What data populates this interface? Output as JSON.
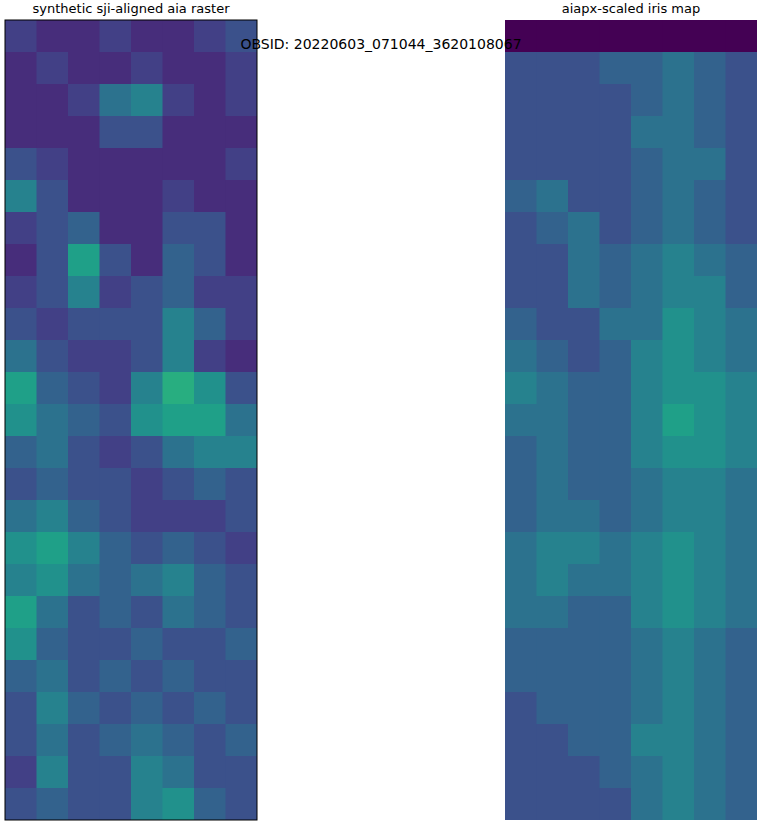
{
  "title": "OBSID: 20220603_071044_3620108067",
  "chart_data": [
    {
      "type": "heatmap",
      "title": "synthetic sji-aligned aia raster",
      "tick_labels": false,
      "zlim": [
        0.1,
        0.9
      ],
      "cells": [
        [
          0.25,
          0.2,
          0.2,
          0.25,
          0.2,
          0.2,
          0.25,
          0.3
        ],
        [
          0.2,
          0.25,
          0.2,
          0.2,
          0.25,
          0.2,
          0.2,
          0.25
        ],
        [
          0.2,
          0.2,
          0.25,
          0.4,
          0.45,
          0.25,
          0.2,
          0.25
        ],
        [
          0.2,
          0.2,
          0.2,
          0.3,
          0.3,
          0.2,
          0.2,
          0.2
        ],
        [
          0.3,
          0.25,
          0.2,
          0.2,
          0.2,
          0.2,
          0.2,
          0.25
        ],
        [
          0.45,
          0.3,
          0.2,
          0.2,
          0.2,
          0.25,
          0.2,
          0.2
        ],
        [
          0.25,
          0.3,
          0.35,
          0.2,
          0.2,
          0.3,
          0.3,
          0.2
        ],
        [
          0.2,
          0.3,
          0.55,
          0.3,
          0.2,
          0.35,
          0.3,
          0.2
        ],
        [
          0.25,
          0.3,
          0.45,
          0.25,
          0.3,
          0.35,
          0.25,
          0.25
        ],
        [
          0.3,
          0.25,
          0.3,
          0.3,
          0.3,
          0.45,
          0.35,
          0.25
        ],
        [
          0.4,
          0.3,
          0.25,
          0.25,
          0.3,
          0.45,
          0.25,
          0.2
        ],
        [
          0.55,
          0.35,
          0.3,
          0.25,
          0.45,
          0.6,
          0.5,
          0.3
        ],
        [
          0.5,
          0.4,
          0.35,
          0.3,
          0.5,
          0.55,
          0.55,
          0.4
        ],
        [
          0.35,
          0.4,
          0.3,
          0.25,
          0.3,
          0.4,
          0.45,
          0.45
        ],
        [
          0.3,
          0.35,
          0.3,
          0.3,
          0.25,
          0.3,
          0.35,
          0.3
        ],
        [
          0.4,
          0.45,
          0.35,
          0.3,
          0.25,
          0.25,
          0.25,
          0.3
        ],
        [
          0.5,
          0.55,
          0.45,
          0.35,
          0.3,
          0.35,
          0.3,
          0.25
        ],
        [
          0.45,
          0.5,
          0.4,
          0.35,
          0.4,
          0.45,
          0.35,
          0.3
        ],
        [
          0.55,
          0.4,
          0.3,
          0.35,
          0.3,
          0.4,
          0.35,
          0.3
        ],
        [
          0.5,
          0.35,
          0.3,
          0.3,
          0.35,
          0.3,
          0.3,
          0.35
        ],
        [
          0.35,
          0.4,
          0.3,
          0.35,
          0.3,
          0.35,
          0.3,
          0.3
        ],
        [
          0.3,
          0.45,
          0.35,
          0.3,
          0.35,
          0.3,
          0.35,
          0.3
        ],
        [
          0.3,
          0.4,
          0.3,
          0.35,
          0.4,
          0.35,
          0.3,
          0.35
        ],
        [
          0.25,
          0.45,
          0.3,
          0.3,
          0.45,
          0.4,
          0.3,
          0.3
        ],
        [
          0.3,
          0.35,
          0.3,
          0.3,
          0.45,
          0.5,
          0.35,
          0.3
        ]
      ]
    },
    {
      "type": "heatmap",
      "title": "aiapx-scaled iris map",
      "tick_labels": false,
      "zlim": [
        0.1,
        0.9
      ],
      "cells": [
        [
          0.1,
          0.1,
          0.1,
          0.1,
          0.1,
          0.1,
          0.1,
          0.1
        ],
        [
          0.3,
          0.3,
          0.3,
          0.35,
          0.35,
          0.4,
          0.35,
          0.3
        ],
        [
          0.3,
          0.3,
          0.3,
          0.3,
          0.35,
          0.4,
          0.35,
          0.3
        ],
        [
          0.3,
          0.3,
          0.3,
          0.3,
          0.4,
          0.4,
          0.35,
          0.3
        ],
        [
          0.3,
          0.3,
          0.3,
          0.3,
          0.35,
          0.4,
          0.4,
          0.3
        ],
        [
          0.35,
          0.4,
          0.3,
          0.3,
          0.35,
          0.4,
          0.35,
          0.3
        ],
        [
          0.3,
          0.35,
          0.4,
          0.3,
          0.35,
          0.4,
          0.35,
          0.3
        ],
        [
          0.3,
          0.3,
          0.4,
          0.35,
          0.4,
          0.45,
          0.4,
          0.35
        ],
        [
          0.3,
          0.3,
          0.4,
          0.35,
          0.4,
          0.45,
          0.45,
          0.35
        ],
        [
          0.35,
          0.3,
          0.3,
          0.4,
          0.4,
          0.5,
          0.45,
          0.4
        ],
        [
          0.4,
          0.35,
          0.3,
          0.35,
          0.45,
          0.5,
          0.45,
          0.4
        ],
        [
          0.45,
          0.4,
          0.35,
          0.35,
          0.45,
          0.5,
          0.5,
          0.45
        ],
        [
          0.4,
          0.4,
          0.35,
          0.35,
          0.45,
          0.55,
          0.5,
          0.45
        ],
        [
          0.35,
          0.4,
          0.35,
          0.35,
          0.45,
          0.5,
          0.5,
          0.45
        ],
        [
          0.35,
          0.4,
          0.35,
          0.35,
          0.4,
          0.45,
          0.45,
          0.4
        ],
        [
          0.35,
          0.4,
          0.4,
          0.35,
          0.4,
          0.45,
          0.45,
          0.4
        ],
        [
          0.4,
          0.45,
          0.45,
          0.4,
          0.45,
          0.5,
          0.45,
          0.4
        ],
        [
          0.4,
          0.45,
          0.4,
          0.4,
          0.45,
          0.5,
          0.45,
          0.4
        ],
        [
          0.4,
          0.4,
          0.35,
          0.35,
          0.45,
          0.5,
          0.45,
          0.4
        ],
        [
          0.35,
          0.35,
          0.35,
          0.35,
          0.4,
          0.45,
          0.4,
          0.35
        ],
        [
          0.35,
          0.35,
          0.35,
          0.35,
          0.4,
          0.45,
          0.4,
          0.35
        ],
        [
          0.3,
          0.35,
          0.35,
          0.35,
          0.4,
          0.45,
          0.4,
          0.35
        ],
        [
          0.3,
          0.3,
          0.35,
          0.35,
          0.45,
          0.45,
          0.4,
          0.35
        ],
        [
          0.3,
          0.3,
          0.3,
          0.35,
          0.4,
          0.45,
          0.4,
          0.35
        ],
        [
          0.3,
          0.3,
          0.3,
          0.3,
          0.4,
          0.45,
          0.4,
          0.35
        ]
      ]
    }
  ]
}
